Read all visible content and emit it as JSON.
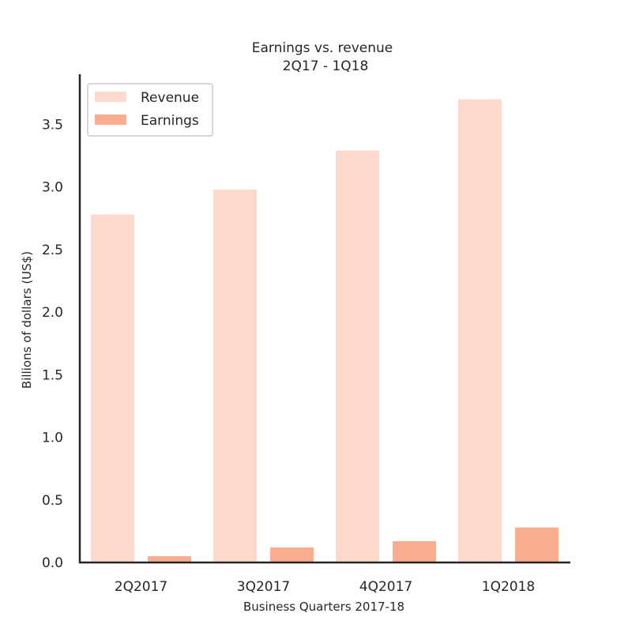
{
  "chart_data": {
    "type": "bar",
    "title_line1": "Earnings vs. revenue",
    "title_line2": "2Q17 - 1Q18",
    "xlabel": "Business Quarters 2017-18",
    "ylabel": "Billions of dollars (US$)",
    "categories": [
      "2Q2017",
      "3Q2017",
      "4Q2017",
      "1Q2018"
    ],
    "series": [
      {
        "name": "Revenue",
        "values": [
          2.78,
          2.98,
          3.29,
          3.7
        ],
        "color": "#fdd9cc"
      },
      {
        "name": "Earnings",
        "values": [
          0.05,
          0.12,
          0.17,
          0.28
        ],
        "color": "#fbad8f"
      }
    ],
    "ylim": [
      0,
      3.9
    ],
    "yticks": [
      "0.0",
      "0.5",
      "1.0",
      "1.5",
      "2.0",
      "2.5",
      "3.0",
      "3.5"
    ],
    "legend_position": "top-left",
    "grid": false
  }
}
